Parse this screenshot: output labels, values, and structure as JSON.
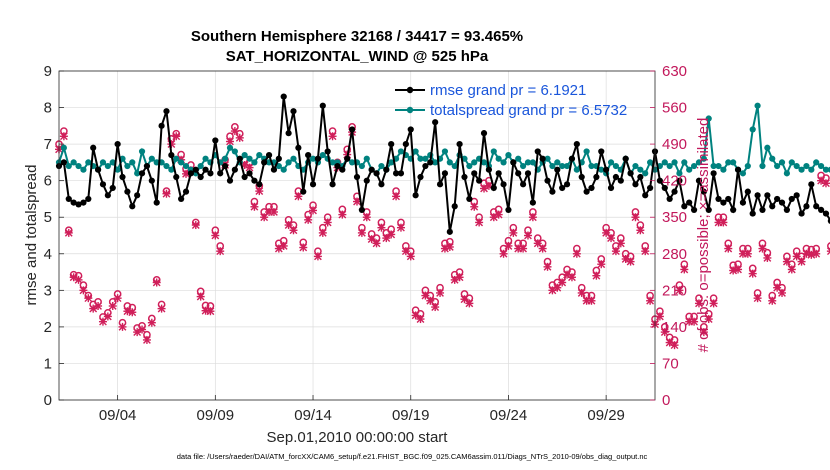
{
  "chart_data": {
    "type": "line",
    "title": "Southern Hemisphere 32168 / 34417 = 93.465%",
    "subtitle": "SAT_HORIZONTAL_WIND @ 525 hPa",
    "xlabel": "Sep.01,2010 00:00:00 start",
    "ylabel": "rmse and totalspread",
    "ylabel_right": "# of obs: o=possible; ×=assimilated",
    "footer": "data file: /Users/raeder/DAI/ATM_forcXX/CAM6_setup/f.e21.FHIST_BGC.f09_025.CAM6assim.011/Diags_NTrS_2010-09/obs_diag_output.nc",
    "xlim": [
      1,
      31.5
    ],
    "ylim": [
      0,
      9
    ],
    "ylim_right": [
      0,
      630
    ],
    "xticks": [
      4,
      9,
      14,
      19,
      24,
      29
    ],
    "xtick_labels": [
      "09/04",
      "09/09",
      "09/14",
      "09/19",
      "09/24",
      "09/29"
    ],
    "yticks": [
      0,
      1,
      2,
      3,
      4,
      5,
      6,
      7,
      8,
      9
    ],
    "yticks_right": [
      0,
      70,
      140,
      210,
      280,
      350,
      420,
      490,
      560,
      630
    ],
    "grid": true,
    "legend_position": "top-right",
    "colors": {
      "rmse": "#000000",
      "totalspread": "#00827f",
      "obs": "#d01f5a",
      "legend_text": "#1a56db"
    },
    "series": [
      {
        "name": "rmse grand pr = 6.1921",
        "axis": "left",
        "x_start": 1,
        "x_step": 0.25,
        "values": [
          6.4,
          6.5,
          5.5,
          5.4,
          5.35,
          5.4,
          5.5,
          6.9,
          6.3,
          5.9,
          5.6,
          5.8,
          7.0,
          6.1,
          5.7,
          5.3,
          5.6,
          6.2,
          6.4,
          6.0,
          5.4,
          7.5,
          7.9,
          6.7,
          6.1,
          5.5,
          5.7,
          6.2,
          6.3,
          6.1,
          6.3,
          6.2,
          7.1,
          6.2,
          6.4,
          6.0,
          6.3,
          6.6,
          6.1,
          6.2,
          6.0,
          5.9,
          6.5,
          6.7,
          6.3,
          6.6,
          8.3,
          7.3,
          7.9,
          6.9,
          5.7,
          6.7,
          5.9,
          6.6,
          8.05,
          6.8,
          5.9,
          6.4,
          6.3,
          6.6,
          7.4,
          6.1,
          5.2,
          6.0,
          6.3,
          6.2,
          5.9,
          6.3,
          7.0,
          6.2,
          6.2,
          7.0,
          7.4,
          5.6,
          6.1,
          6.4,
          6.5,
          7.6,
          5.9,
          6.2,
          4.6,
          5.3,
          7.0,
          6.1,
          5.5,
          6.2,
          6.0,
          7.3,
          6.3,
          5.8,
          6.2,
          5.9,
          5.2,
          6.5,
          6.2,
          5.9,
          6.2,
          5.4,
          6.8,
          6.6,
          6.0,
          5.7,
          6.3,
          5.8,
          5.9,
          6.6,
          7.0,
          6.1,
          5.7,
          5.8,
          6.1,
          6.8,
          6.3,
          5.8,
          6.1,
          6.0,
          6.6,
          6.2,
          5.9,
          6.1,
          5.6,
          5.8,
          6.8,
          6.0,
          5.8,
          5.5,
          5.7,
          6.0,
          5.3,
          5.4,
          5.2,
          6.0,
          5.7,
          5.2,
          6.2,
          5.5,
          5.4,
          5.5,
          5.2,
          6.3,
          5.4,
          5.7,
          5.1,
          5.6,
          5.2,
          5.6,
          5.3,
          5.5,
          5.4,
          5.2,
          5.5,
          5.6,
          5.1,
          5.3,
          5.9,
          5.3,
          5.2,
          5.1,
          4.9
        ]
      },
      {
        "name": "totalspread grand pr = 6.5732",
        "axis": "left",
        "x_start": 1,
        "x_step": 0.25,
        "values": [
          6.5,
          6.9,
          6.4,
          6.5,
          6.4,
          6.3,
          6.5,
          6.4,
          6.3,
          6.5,
          6.4,
          6.5,
          6.3,
          6.6,
          6.4,
          6.5,
          6.2,
          6.8,
          6.4,
          6.6,
          6.5,
          6.5,
          6.4,
          6.3,
          6.6,
          6.5,
          6.4,
          6.3,
          6.2,
          6.4,
          6.6,
          6.5,
          6.7,
          6.5,
          6.6,
          6.9,
          6.8,
          6.5,
          6.7,
          6.6,
          6.5,
          6.7,
          6.6,
          6.5,
          6.5,
          6.4,
          6.3,
          6.5,
          6.6,
          6.4,
          6.3,
          6.5,
          6.6,
          6.5,
          6.7,
          6.6,
          6.5,
          6.5,
          6.4,
          6.6,
          6.5,
          6.5,
          6.4,
          6.6,
          6.3,
          6.2,
          6.4,
          6.3,
          6.5,
          6.6,
          6.8,
          6.7,
          6.6,
          6.8,
          6.6,
          6.6,
          6.7,
          6.5,
          6.6,
          6.8,
          6.5,
          6.4,
          6.7,
          6.6,
          6.4,
          6.5,
          6.6,
          6.5,
          6.4,
          6.8,
          6.6,
          6.5,
          6.7,
          6.5,
          6.6,
          6.4,
          6.5,
          6.5,
          6.3,
          6.5,
          6.6,
          6.4,
          6.5,
          6.4,
          6.4,
          6.6,
          6.3,
          6.5,
          6.8,
          6.4,
          6.4,
          6.3,
          6.2,
          6.5,
          6.4,
          6.3,
          6.6,
          6.2,
          6.4,
          6.3,
          6.2,
          6.5,
          6.3,
          6.4,
          6.5,
          6.4,
          6.5,
          6.2,
          6.5,
          6.3,
          6.4,
          6.5,
          6.6,
          7.7,
          6.4,
          6.4,
          6.3,
          6.5,
          6.5,
          6.3,
          6.2,
          6.4,
          7.4,
          8.05,
          6.4,
          6.9,
          6.6,
          6.4,
          6.5,
          6.2,
          6.5,
          6.4,
          6.3,
          6.4,
          6.3,
          6.5,
          6.4,
          6.3,
          6.3,
          6.2,
          6.1,
          5.9,
          5.8,
          5.5
        ]
      },
      {
        "name": "obs possible",
        "axis": "right",
        "marker": "o",
        "x_start": 1,
        "x_step": 0.25,
        "values": [
          490,
          515,
          325,
          240,
          238,
          220,
          200,
          183,
          188,
          159,
          167,
          188,
          203,
          148,
          180,
          177,
          138,
          142,
          125,
          156,
          230,
          183,
          400,
          500,
          510,
          470,
          443,
          450,
          340,
          208,
          181,
          180,
          325,
          295,
          460,
          505,
          523,
          510,
          460,
          455,
          380,
          410,
          360,
          370,
          370,
          300,
          305,
          345,
          335,
          400,
          302,
          355,
          373,
          285,
          330,
          350,
          515,
          455,
          365,
          480,
          523,
          390,
          330,
          360,
          318,
          310,
          340,
          320,
          327,
          400,
          340,
          295,
          285,
          172,
          165,
          210,
          200,
          188,
          215,
          300,
          303,
          240,
          245,
          203,
          195,
          380,
          350,
          415,
          420,
          360,
          365,
          290,
          305,
          330,
          300,
          300,
          325,
          360,
          310,
          300,
          265,
          220,
          225,
          235,
          250,
          245,
          290,
          215,
          200,
          200,
          248,
          270,
          330,
          320,
          295,
          310,
          280,
          275,
          360,
          335,
          295,
          200,
          155,
          170,
          140,
          120,
          115,
          220,
          260,
          160,
          160,
          195,
          140,
          165,
          195,
          350,
          350,
          300,
          258,
          260,
          290,
          290,
          252,
          205,
          300,
          282,
          200,
          225,
          215,
          275,
          260,
          285,
          275,
          290,
          288,
          290,
          430,
          425,
          295,
          280,
          240,
          248
        ]
      },
      {
        "name": "obs assimilated",
        "axis": "right",
        "marker": "x",
        "x_start": 1,
        "x_step": 0.25,
        "values": [
          480,
          505,
          320,
          235,
          230,
          210,
          195,
          175,
          180,
          150,
          160,
          180,
          195,
          140,
          170,
          168,
          130,
          135,
          115,
          148,
          225,
          175,
          395,
          490,
          505,
          460,
          433,
          440,
          335,
          198,
          171,
          170,
          315,
          285,
          450,
          495,
          515,
          502,
          450,
          445,
          370,
          400,
          350,
          360,
          360,
          290,
          295,
          335,
          325,
          390,
          292,
          345,
          363,
          275,
          320,
          340,
          505,
          445,
          355,
          470,
          513,
          380,
          320,
          350,
          308,
          300,
          330,
          310,
          317,
          390,
          330,
          285,
          275,
          162,
          155,
          200,
          190,
          178,
          205,
          290,
          293,
          230,
          235,
          193,
          185,
          370,
          340,
          405,
          410,
          350,
          355,
          280,
          295,
          320,
          290,
          290,
          315,
          350,
          300,
          290,
          255,
          210,
          215,
          225,
          240,
          235,
          280,
          205,
          190,
          190,
          238,
          260,
          320,
          310,
          285,
          300,
          270,
          265,
          350,
          325,
          285,
          190,
          145,
          160,
          130,
          110,
          105,
          210,
          250,
          150,
          150,
          185,
          130,
          155,
          185,
          340,
          340,
          290,
          248,
          250,
          280,
          280,
          242,
          195,
          290,
          272,
          190,
          215,
          205,
          265,
          250,
          275,
          265,
          280,
          278,
          280,
          420,
          415,
          285,
          270,
          230,
          238
        ]
      }
    ]
  }
}
